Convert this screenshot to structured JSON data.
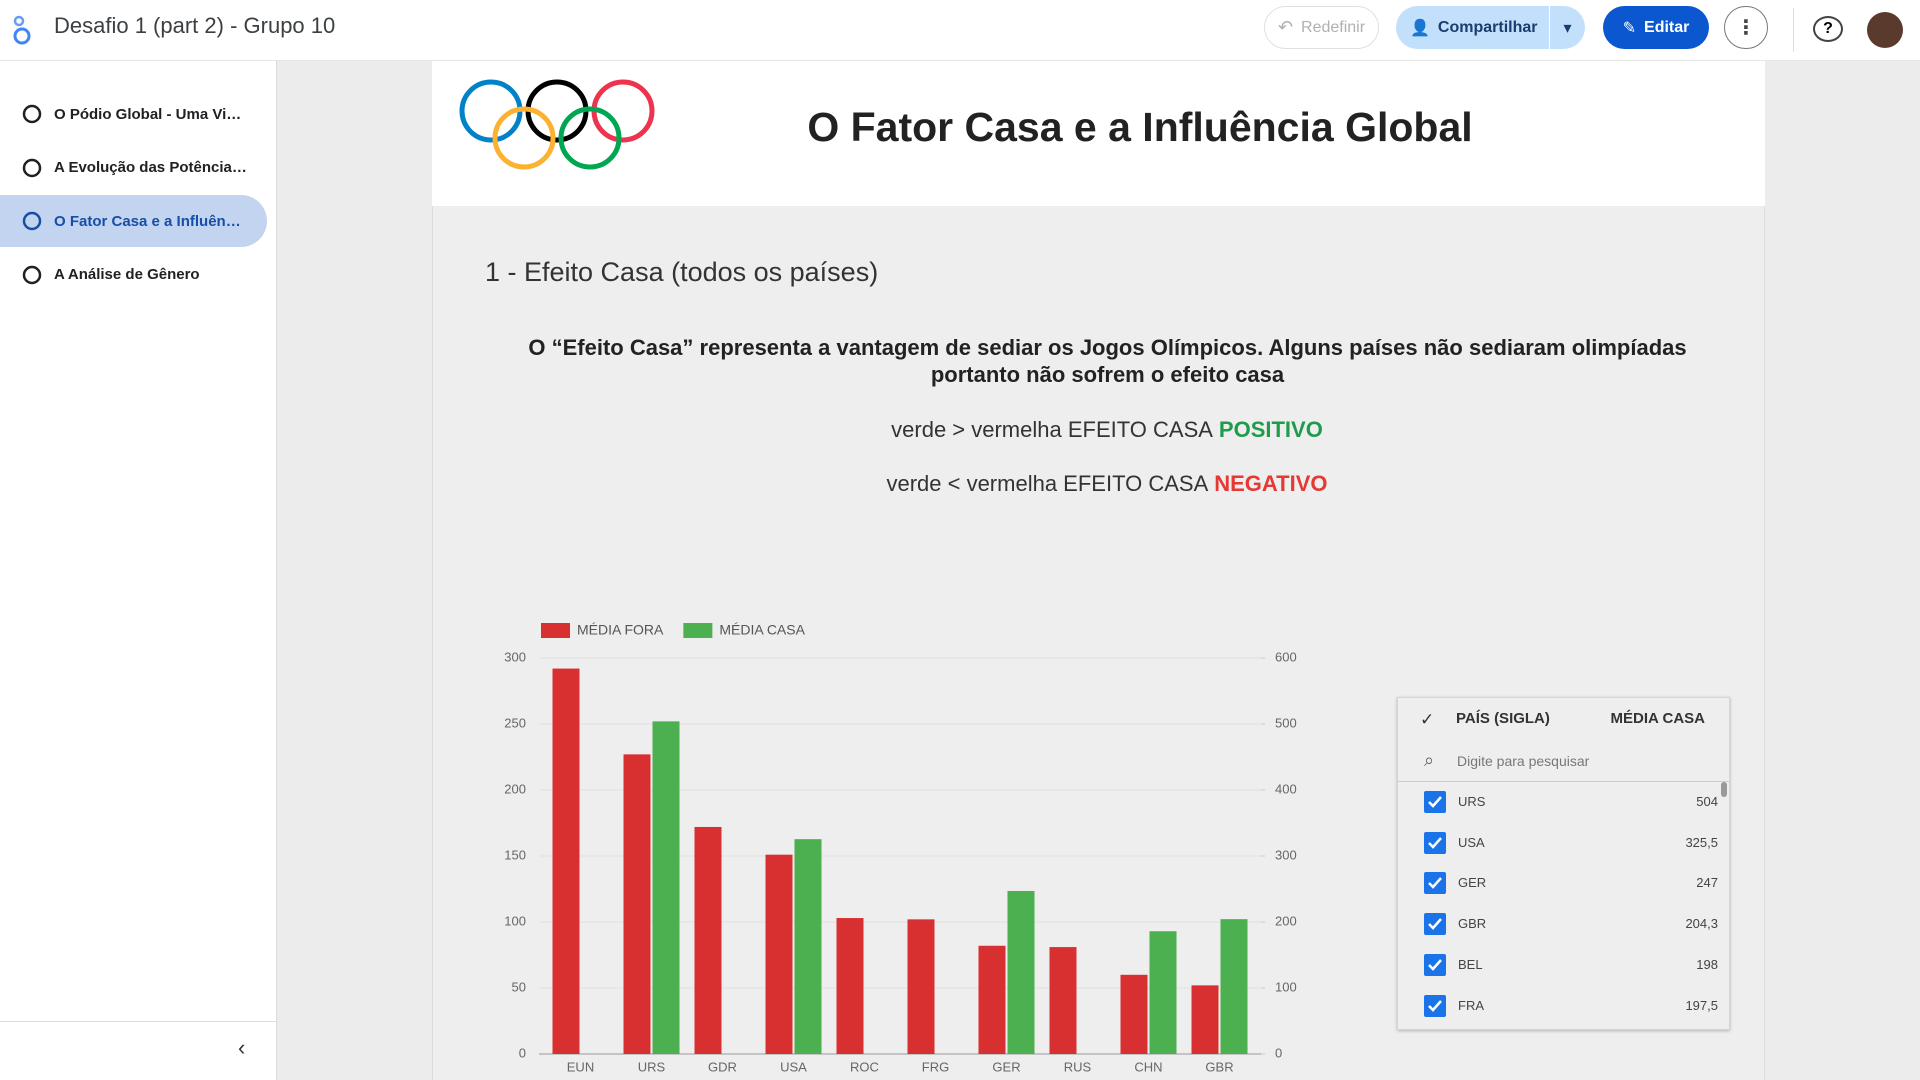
{
  "header": {
    "title": "Desafio 1 (part 2) - Grupo 10",
    "buttons": [
      "Redefinir",
      "Compartilhar",
      "Editar"
    ]
  },
  "nav": {
    "items": [
      "O Pódio Global - Uma Vi…",
      "A Evolução das Potência…",
      "O Fator Casa e a Influên…",
      "A Análise de Gênero"
    ],
    "active": 2
  },
  "report": {
    "title": "O Fator Casa e a Influência Global",
    "section_title": "1 - Efeito Casa (todos os países)",
    "description": "O “Efeito Casa” representa a vantagem de sediar os Jogos Olímpicos. Alguns países não sediaram olimpíadas portanto não sofrem o efeito casa",
    "rules": [
      {
        "text": "verde > vermelha EFEITO CASA",
        "highlight": "POSITIVO",
        "color": "#1e9c4c"
      },
      {
        "text": "verde < vermelha EFEITO CASA",
        "highlight": "NEGATIVO",
        "color": "#e53935"
      }
    ]
  },
  "chart_data": {
    "type": "bar",
    "categories": [
      "EUN",
      "URS",
      "GDR",
      "USA",
      "ROC",
      "FRG",
      "GER",
      "RUS",
      "CHN",
      "GBR"
    ],
    "series": [
      {
        "name": "MÉDIA FORA",
        "color": "#d83030",
        "values": [
          292,
          227,
          172,
          151,
          103,
          102,
          82,
          81,
          60,
          52
        ]
      },
      {
        "name": "MÉDIA CASA",
        "color": "#4caf50",
        "axis": "y2",
        "values": [
          null,
          504,
          null,
          325.5,
          null,
          null,
          247,
          null,
          186,
          204.3
        ]
      }
    ],
    "ylim": [
      0,
      300
    ],
    "yticks": [
      0,
      50,
      100,
      150,
      200,
      250,
      300
    ],
    "y2lim": [
      0,
      600
    ],
    "y2ticks": [
      0,
      100,
      200,
      300,
      400,
      500,
      600
    ],
    "grid": true,
    "legend": "top-left"
  },
  "table": {
    "columns": [
      "PAÍS (SIGLA)",
      "MÉDIA CASA"
    ],
    "search_placeholder": "Digite para pesquisar",
    "rows": [
      [
        "URS",
        "504"
      ],
      [
        "USA",
        "325,5"
      ],
      [
        "GER",
        "247"
      ],
      [
        "GBR",
        "204,3"
      ],
      [
        "BEL",
        "198"
      ],
      [
        "FRA",
        "197,5"
      ]
    ]
  }
}
